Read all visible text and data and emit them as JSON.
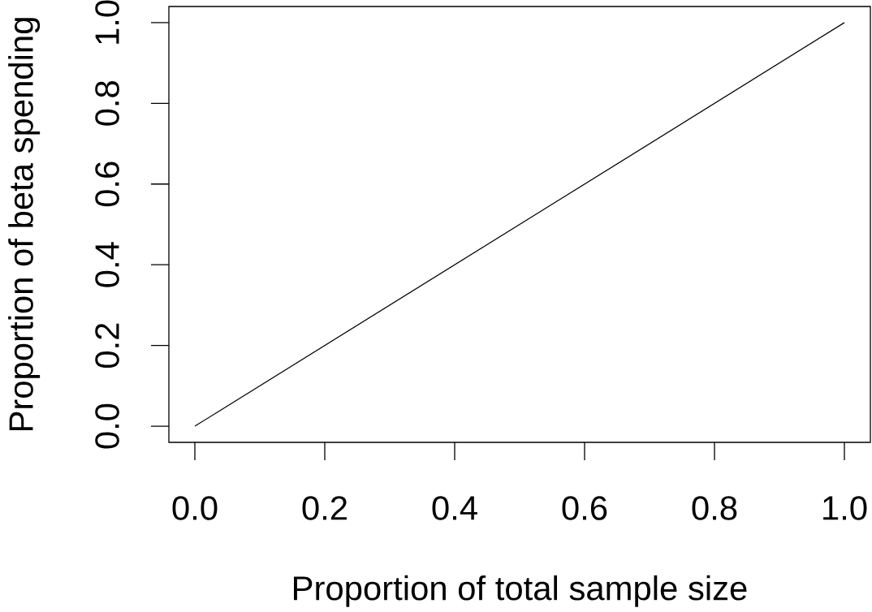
{
  "chart_data": {
    "type": "line",
    "xlabel": "Proportion of total sample size",
    "ylabel": "Proportion of beta spending",
    "x": [
      0,
      1
    ],
    "series": [
      {
        "color": "#000000",
        "values": [
          0,
          1
        ]
      }
    ],
    "xlim": [
      -0.04,
      1.04
    ],
    "ylim": [
      -0.04,
      1.04
    ],
    "xticks": [
      {
        "value": 0,
        "label": "0.0"
      },
      {
        "value": 0.2,
        "label": "0.2"
      },
      {
        "value": 0.4,
        "label": "0.4"
      },
      {
        "value": 0.6,
        "label": "0.6"
      },
      {
        "value": 0.8,
        "label": "0.8"
      },
      {
        "value": 1,
        "label": "1.0"
      }
    ],
    "yticks": [
      {
        "value": 0,
        "label": "0.0"
      },
      {
        "value": 0.2,
        "label": "0.2"
      },
      {
        "value": 0.4,
        "label": "0.4"
      },
      {
        "value": 0.6,
        "label": "0.6"
      },
      {
        "value": 0.8,
        "label": "0.8"
      },
      {
        "value": 1,
        "label": "1.0"
      }
    ],
    "grid": false,
    "marker": "none",
    "line_style": "solid"
  }
}
